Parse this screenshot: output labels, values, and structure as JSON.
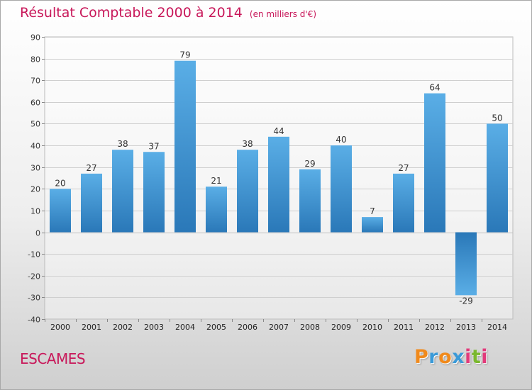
{
  "header": {
    "title": "Résultat Comptable 2000 à 2014",
    "unit": "(en milliers d'€)"
  },
  "footer": {
    "commune": "ESCAMES",
    "logo_letters": [
      "P",
      "r",
      "o",
      "x",
      "i",
      "t",
      "i"
    ]
  },
  "colors": {
    "title": "#c8185a",
    "bar_light": "#5aaee6",
    "bar_dark": "#2a78b8",
    "grid": "#cfcfcf",
    "logo": [
      "#f08a1c",
      "#3a9ad8",
      "#f08a1c",
      "#3a9ad8",
      "#e23a7a",
      "#7ab82e",
      "#e23a7a"
    ]
  },
  "chart_data": {
    "type": "bar",
    "title": "Résultat Comptable 2000 à 2014",
    "subtitle": "(en milliers d'€)",
    "xlabel": "",
    "ylabel": "",
    "ylim": [
      -40,
      90
    ],
    "yticks": [
      90,
      80,
      70,
      60,
      50,
      40,
      30,
      20,
      10,
      0,
      -10,
      -20,
      -30,
      -40
    ],
    "grid": true,
    "categories": [
      "2000",
      "2001",
      "2002",
      "2003",
      "2004",
      "2005",
      "2006",
      "2007",
      "2008",
      "2009",
      "2010",
      "2011",
      "2012",
      "2013",
      "2014"
    ],
    "values": [
      20,
      27,
      38,
      37,
      79,
      21,
      38,
      44,
      29,
      40,
      7,
      27,
      64,
      -29,
      50
    ]
  }
}
